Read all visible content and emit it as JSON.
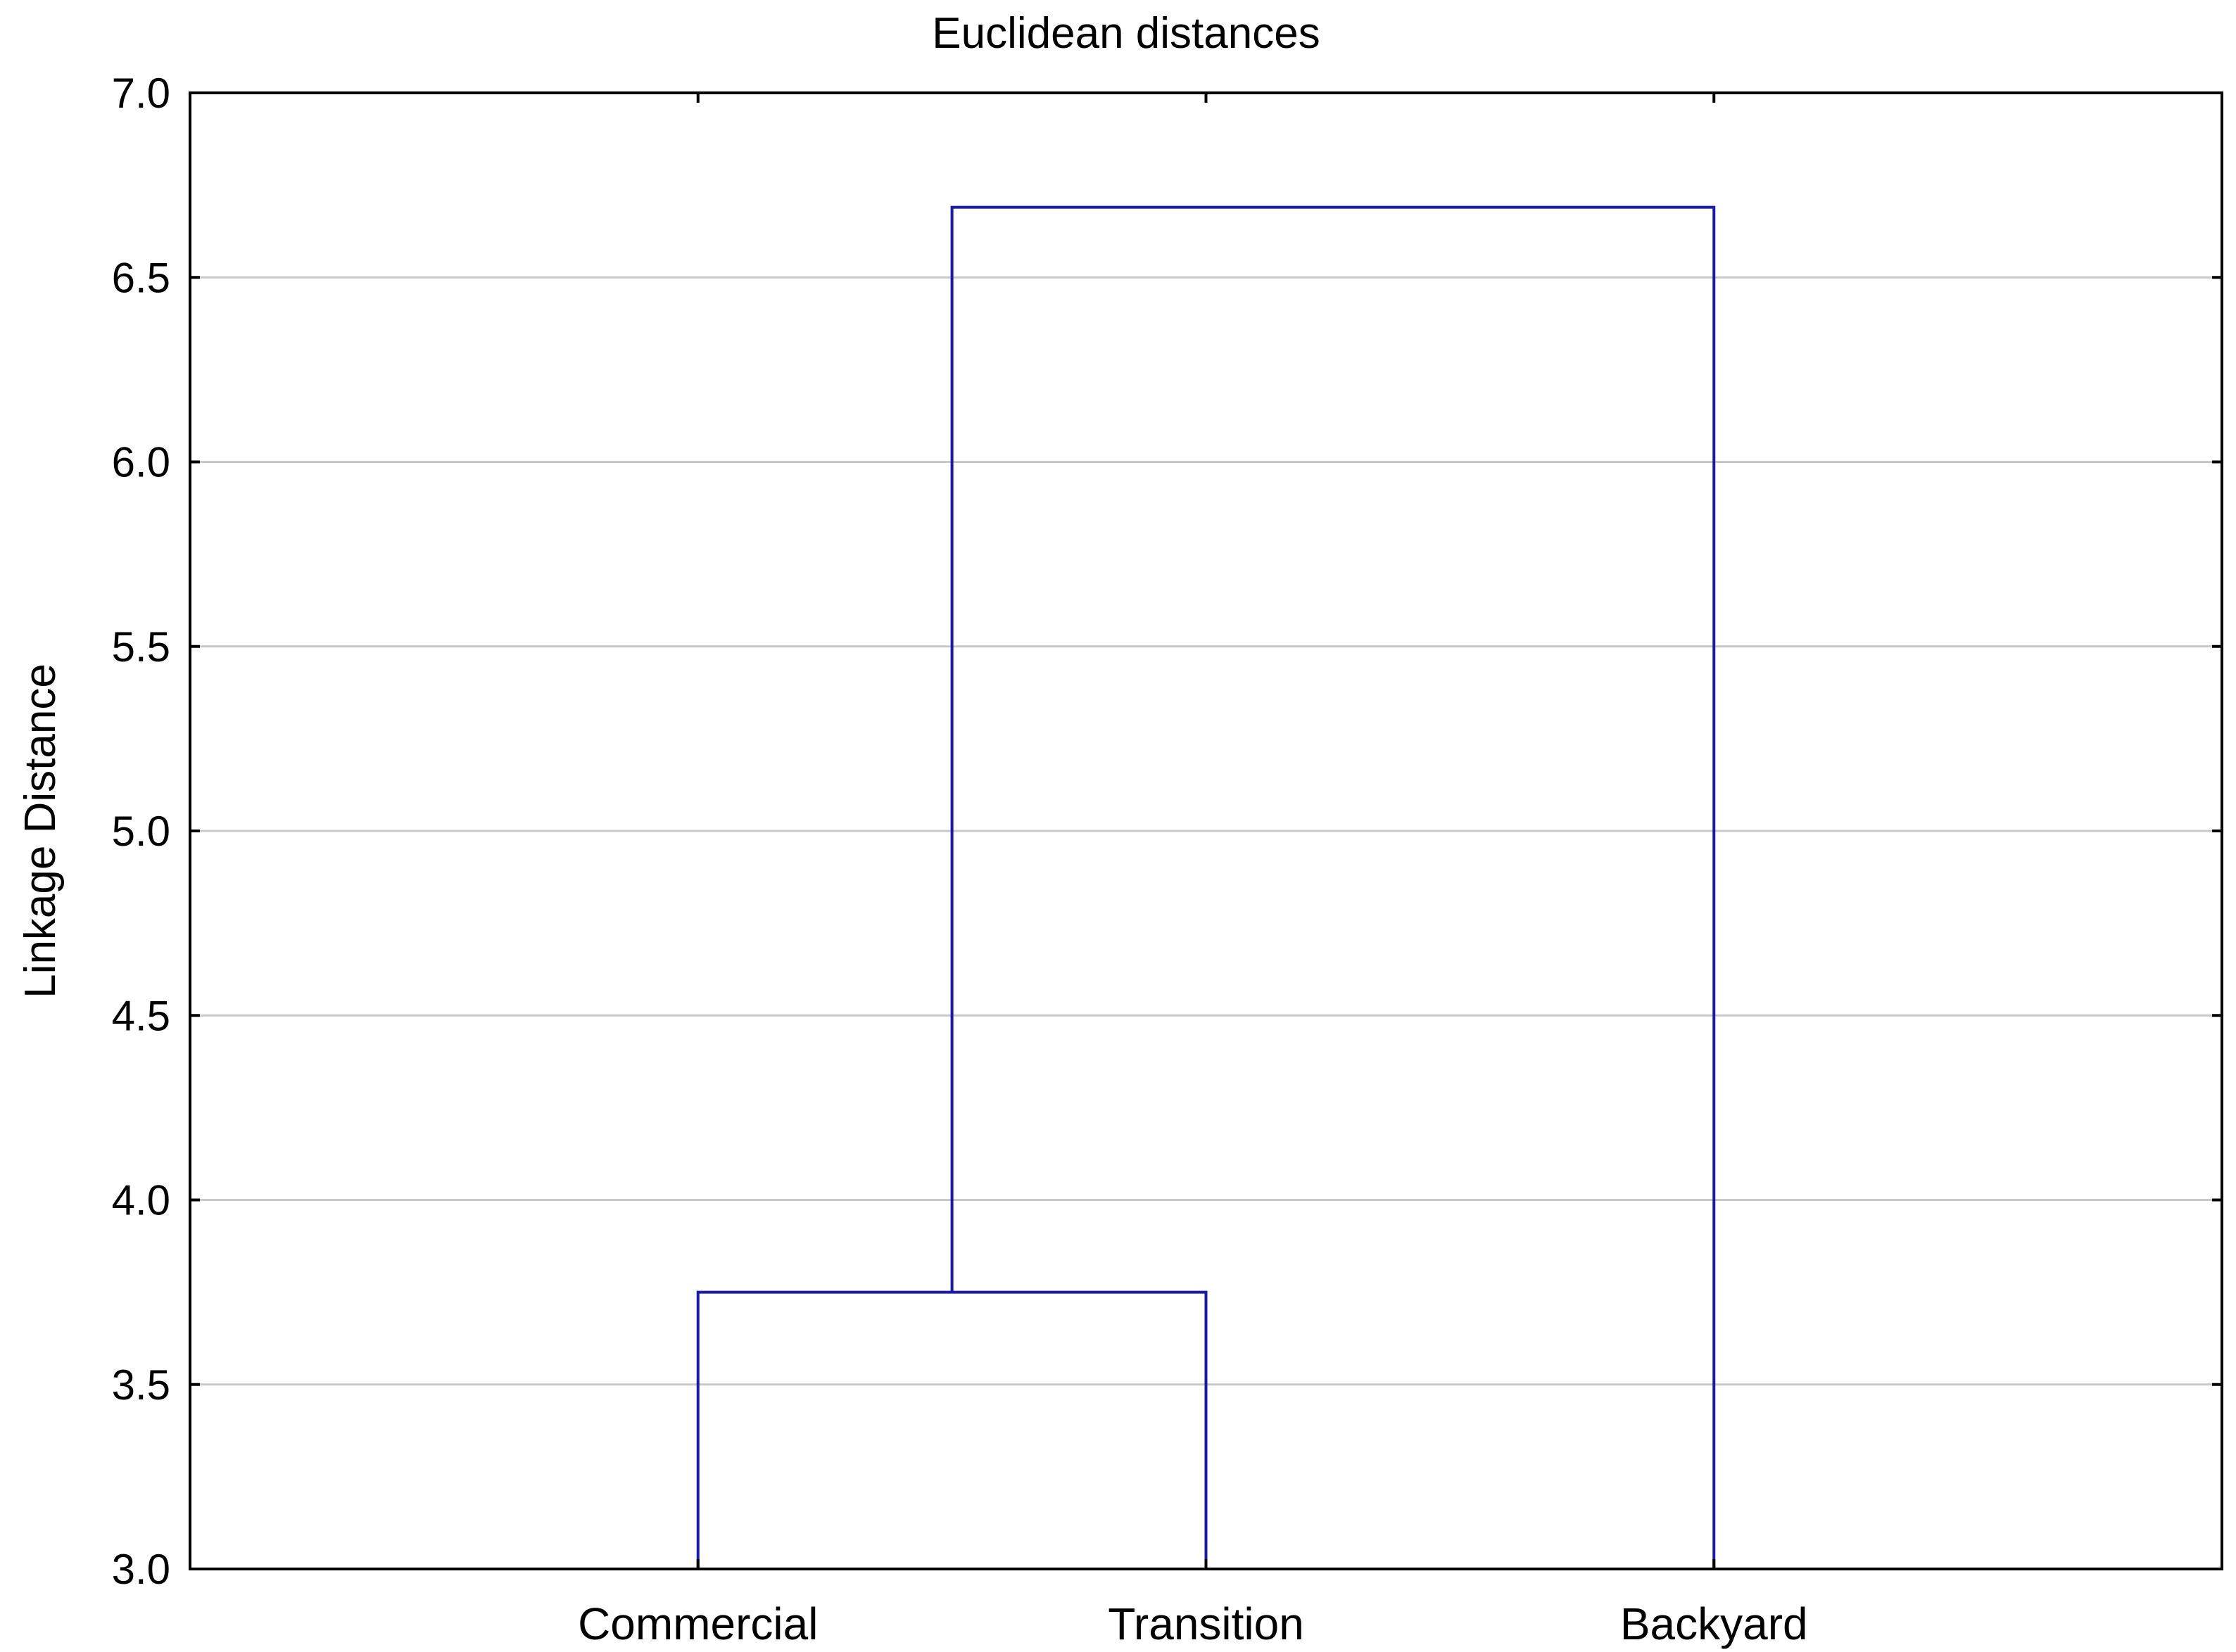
{
  "chart_data": {
    "type": "dendrogram",
    "title": "Euclidean distances",
    "xlabel": "",
    "ylabel": "Linkage Distance",
    "ylim": [
      3.0,
      7.0
    ],
    "yticks": [
      3.0,
      3.5,
      4.0,
      4.5,
      5.0,
      5.5,
      6.0,
      6.5,
      7.0
    ],
    "ytick_labels": [
      "3.0",
      "3.5",
      "4.0",
      "4.5",
      "5.0",
      "5.5",
      "6.0",
      "6.5",
      "7.0"
    ],
    "categories": [
      "Commercial",
      "Transition",
      "Backyard"
    ],
    "linkages": [
      {
        "left": "Commercial",
        "right": "Transition",
        "distance": 3.75
      },
      {
        "left": "Commercial+Transition",
        "right": "Backyard",
        "distance": 6.69
      }
    ],
    "grid": true,
    "colors": {
      "link": "#1a1aa8",
      "grid": "#c8c8c8",
      "frame": "#000000"
    }
  }
}
